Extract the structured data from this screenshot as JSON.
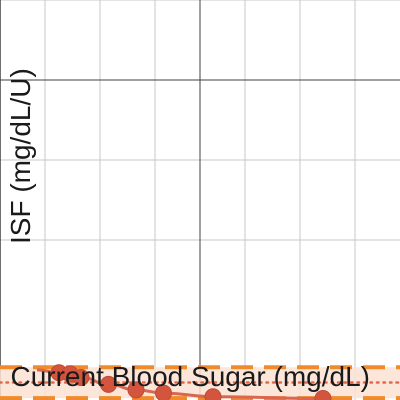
{
  "chart_data": {
    "type": "line",
    "xlabel": "Current Blood Sugar (mg/dL)",
    "ylabel": "ISF (mg/dL/U)",
    "ylim": [
      20,
      130
    ],
    "grid": true,
    "series": [
      {
        "x": [
          90,
          100,
          110,
          135,
          160,
          185,
          230,
          330
        ],
        "y": [
          27.5,
          27.2,
          26.2,
          24.3,
          22.8,
          21.9,
          20.9,
          20.4
        ]
      }
    ],
    "reference_band": {
      "lower": 20.5,
      "upper": 29,
      "center": 24.8
    },
    "colors": {
      "line": "#d9664e",
      "point": "#d3553d",
      "band_fill": "#fbe2d4",
      "band_dash": "#f08a2a",
      "center_dot": "#e3694d",
      "grid_major": "#404040",
      "grid_minor": "#c8c8c8"
    }
  }
}
